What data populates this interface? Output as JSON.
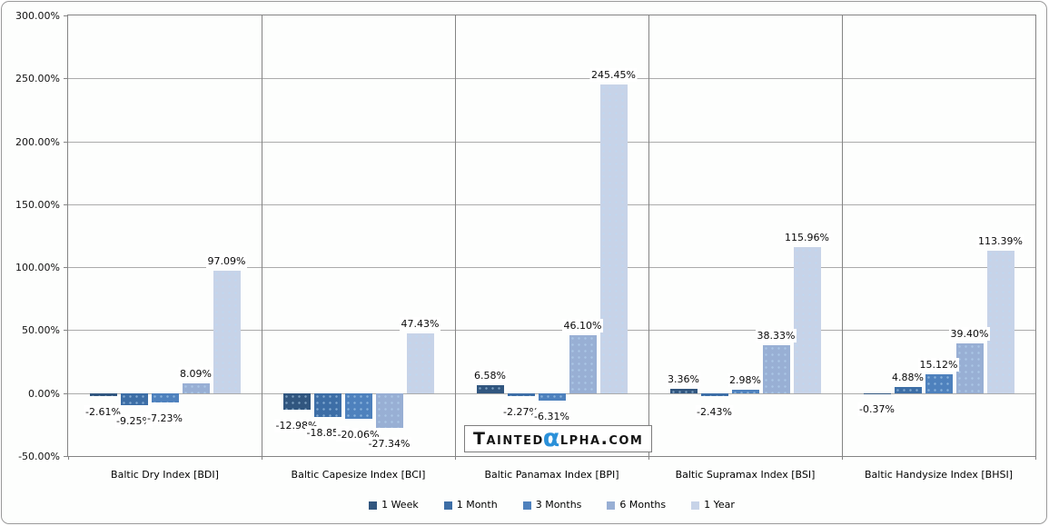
{
  "chart_data": {
    "type": "bar",
    "title": "",
    "xlabel": "",
    "ylabel": "",
    "categories": [
      "Baltic Dry Index [BDI]",
      "Baltic Capesize Index [BCI]",
      "Baltic Panamax Index [BPI]",
      "Baltic Supramax Index [BSI]",
      "Baltic Handysize Index [BHSI]"
    ],
    "series": [
      {
        "name": "1 Week",
        "color": "#31567F",
        "values": [
          -2.61,
          -12.98,
          6.58,
          3.36,
          -0.37
        ]
      },
      {
        "name": "1 Month",
        "color": "#3D6EA6",
        "values": [
          -9.25,
          -18.85,
          -2.27,
          -2.43,
          4.88
        ]
      },
      {
        "name": "3 Months",
        "color": "#4E81BD",
        "values": [
          -7.23,
          -20.06,
          -6.31,
          2.98,
          15.12
        ]
      },
      {
        "name": "6 Months",
        "color": "#98AFD4",
        "values": [
          8.09,
          -27.34,
          46.1,
          38.33,
          39.4
        ]
      },
      {
        "name": "1 Year",
        "color": "#C7D3E8",
        "values": [
          97.09,
          47.43,
          245.45,
          115.96,
          113.39
        ]
      }
    ],
    "ylim": [
      -50,
      300
    ],
    "y_tick_step": 50,
    "y_tick_labels": [
      "300.00%",
      "250.00%",
      "200.00%",
      "150.00%",
      "100.00%",
      "50.00%",
      "0.00%",
      "-50.00%"
    ],
    "value_label_format": "0.00%",
    "grid": true,
    "legend_position": "bottom"
  },
  "watermark": {
    "part1": "Tainted",
    "alpha": "α",
    "part2": "lpha.com",
    "alpha_color": "#2A90D9"
  },
  "colors": {
    "axis": "#848484",
    "gridline": "#ABABAB",
    "background": "#FDFEFD",
    "label_background": "#FFFFFF"
  }
}
